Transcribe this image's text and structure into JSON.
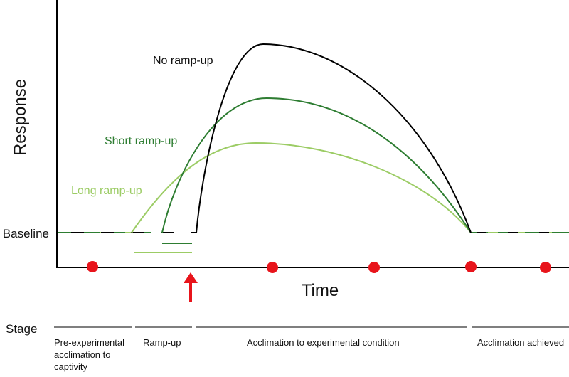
{
  "axis": {
    "y_label": "Response",
    "x_label": "Time",
    "baseline_label": "Baseline"
  },
  "curves": [
    {
      "name": "no-ramp-up-curve",
      "label": "No ramp-up",
      "color": "#000000"
    },
    {
      "name": "short-ramp-up-curve",
      "label": "Short ramp-up",
      "color": "#2e7d32"
    },
    {
      "name": "long-ramp-up-curve",
      "label": "Long ramp-up",
      "color": "#9ccc65"
    }
  ],
  "colors": {
    "marker": "#e8141b",
    "arrow": "#e8141b",
    "axis": "#000000"
  },
  "stage": {
    "label": "Stage",
    "items": [
      {
        "lines": [
          "Pre-experimental",
          "acclimation to",
          "captivity"
        ]
      },
      {
        "lines": [
          "Ramp-up"
        ]
      },
      {
        "lines": [
          "Acclimation to experimental condition"
        ]
      },
      {
        "lines": [
          "Acclimation achieved"
        ]
      }
    ]
  }
}
